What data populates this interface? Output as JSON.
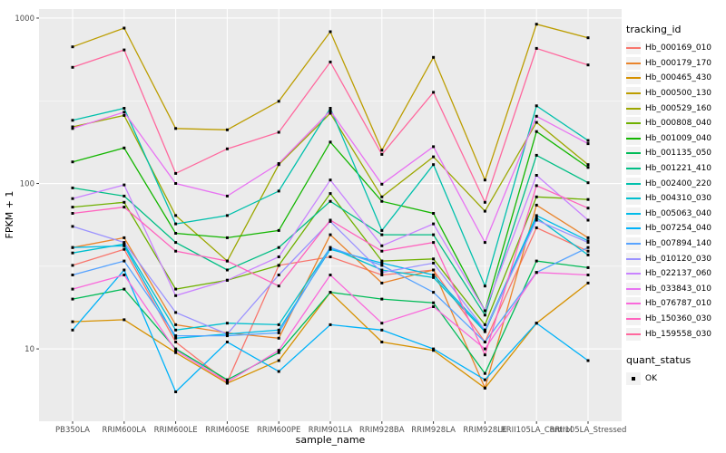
{
  "figure": {
    "background": "#ffffff",
    "panel_background": "#ebebeb",
    "grid_color": "#ffffff",
    "tick_text_color": "#4d4d4d",
    "point_color": "#000000"
  },
  "legend": {
    "tracking_title": "tracking_id",
    "quant_title": "quant_status",
    "quant_ok": "OK"
  },
  "chart_data": {
    "type": "line",
    "title": "",
    "xlabel": "sample_name",
    "ylabel": "FPKM + 1",
    "y_scale": "log10",
    "ylim": [
      3.65,
      1134
    ],
    "y_ticks": [
      10,
      100,
      1000
    ],
    "y_minor_ticks": [
      3.162,
      31.62,
      316.2
    ],
    "grid": true,
    "legend_position": "right",
    "point_marker": {
      "shape": "square",
      "color": "#000000",
      "size": 3
    },
    "categories": [
      "PB350LA",
      "RRIM600LA",
      "RRIM600LE",
      "RRIM600SE",
      "RRIM600PE",
      "RRIM901LA",
      "RRIM928BA",
      "RRIM928LA",
      "RRIM928LE",
      "RRII105LA_Control",
      "RRII105LA_Stressed"
    ],
    "series": [
      {
        "name": "Hb_000169_010",
        "color": "#F8766D",
        "values": [
          32,
          40,
          11,
          6.3,
          32,
          36,
          28,
          30,
          11,
          54,
          39
        ]
      },
      {
        "name": "Hb_000179_170",
        "color": "#E9842C",
        "values": [
          41,
          47,
          14,
          12.5,
          11.6,
          49,
          25,
          30,
          5.8,
          74,
          47
        ]
      },
      {
        "name": "Hb_000465_430",
        "color": "#D69100",
        "values": [
          14.6,
          15,
          9.5,
          6.2,
          8.5,
          22,
          11,
          9.8,
          5.8,
          14.3,
          25
        ]
      },
      {
        "name": "Hb_000500_130",
        "color": "#BC9D00",
        "values": [
          670,
          870,
          215,
          211,
          314,
          827,
          159,
          579,
          105,
          919,
          760
        ]
      },
      {
        "name": "Hb_000529_160",
        "color": "#9CA700",
        "values": [
          220,
          258,
          64,
          34,
          130,
          266,
          83,
          145,
          68,
          234,
          130
        ]
      },
      {
        "name": "Hb_000808_040",
        "color": "#6FB000",
        "values": [
          72,
          77,
          23,
          26,
          32,
          87,
          34,
          35,
          14,
          83,
          80
        ]
      },
      {
        "name": "Hb_001009_040",
        "color": "#13B600",
        "values": [
          135,
          164,
          50,
          47,
          52,
          178,
          78,
          66,
          17,
          206,
          125
        ]
      },
      {
        "name": "Hb_001135_050",
        "color": "#00BB57",
        "values": [
          20,
          23,
          10,
          6.5,
          9.5,
          22,
          20,
          19,
          7.1,
          34,
          31
        ]
      },
      {
        "name": "Hb_001221_410",
        "color": "#00BE85",
        "values": [
          94,
          84,
          44,
          30,
          41,
          78,
          49,
          49,
          16,
          148,
          101
        ]
      },
      {
        "name": "Hb_002400_220",
        "color": "#00C0AC",
        "values": [
          241,
          285,
          57,
          64,
          90,
          285,
          52,
          130,
          24,
          295,
          182
        ]
      },
      {
        "name": "Hb_004310_030",
        "color": "#00BFCE",
        "values": [
          38,
          43,
          13,
          14.3,
          14,
          41,
          30,
          27,
          12.7,
          62,
          37
        ]
      },
      {
        "name": "Hb_005063_040",
        "color": "#00BBE8",
        "values": [
          41,
          42,
          11.6,
          12.3,
          13,
          40,
          33,
          28,
          13,
          64,
          45
        ]
      },
      {
        "name": "Hb_007254_040",
        "color": "#00B2F9",
        "values": [
          13,
          30,
          5.5,
          11,
          7.3,
          14,
          13,
          10,
          6.5,
          14.3,
          8.5
        ]
      },
      {
        "name": "Hb_007894_140",
        "color": "#57A3FF",
        "values": [
          28,
          34,
          12,
          12,
          12.5,
          41,
          32,
          22,
          11,
          29,
          41
        ]
      },
      {
        "name": "Hb_010120_030",
        "color": "#9B92FF",
        "values": [
          55,
          44,
          16.6,
          12.3,
          28,
          59,
          29,
          33,
          13,
          60,
          44
        ]
      },
      {
        "name": "Hb_022137_060",
        "color": "#C983FF",
        "values": [
          81,
          98,
          21,
          26,
          36,
          105,
          42,
          57,
          17,
          112,
          60
        ]
      },
      {
        "name": "Hb_033843_010",
        "color": "#E873F2",
        "values": [
          215,
          270,
          100,
          84,
          132,
          275,
          99,
          167,
          44,
          255,
          174
        ]
      },
      {
        "name": "Hb_076787_010",
        "color": "#FA69DB",
        "values": [
          23,
          28,
          9.8,
          6.3,
          9.8,
          28,
          14.3,
          18,
          10,
          29,
          28
        ]
      },
      {
        "name": "Hb_150360_030",
        "color": "#FF63BE",
        "values": [
          66,
          72,
          39,
          34,
          24,
          60,
          39,
          44,
          9.2,
          97,
          71
        ]
      },
      {
        "name": "Hb_159558_030",
        "color": "#FF689E",
        "values": [
          504,
          642,
          115,
          162,
          204,
          543,
          150,
          356,
          77,
          656,
          521
        ]
      }
    ]
  }
}
